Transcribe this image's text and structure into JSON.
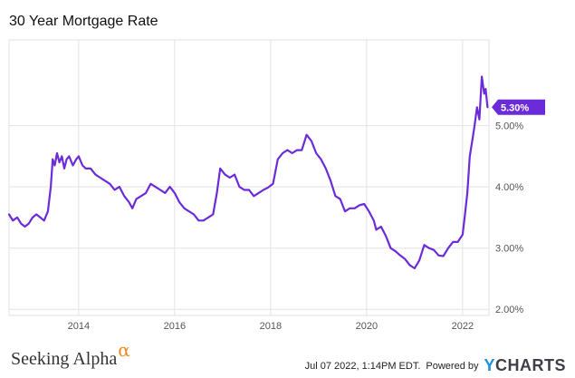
{
  "header": {
    "title": "30 Year Mortgage Rate"
  },
  "footer": {
    "brand_text": "Seeking Alpha",
    "brand_symbol": "α",
    "timestamp": "Jul 07 2022, 1:14PM EDT.",
    "powered_by": "Powered by",
    "logo_y": "Y",
    "logo_rest": "CHARTS"
  },
  "colors": {
    "line": "#6c2bd9",
    "grid": "#e3e3e3",
    "badge": "#6c2bd9"
  },
  "chart_data": {
    "type": "line",
    "title": "30 Year Mortgage Rate",
    "xlabel": "",
    "ylabel": "",
    "xlim": [
      2012.55,
      2022.55
    ],
    "ylim": [
      1.9,
      6.4
    ],
    "x_ticks": [
      2014,
      2016,
      2018,
      2020,
      2022
    ],
    "x_tick_labels": [
      "2014",
      "2016",
      "2018",
      "2020",
      "2022"
    ],
    "y_ticks": [
      2,
      3,
      4,
      5
    ],
    "y_tick_labels": [
      "2.00%",
      "3.00%",
      "4.00%",
      "5.00%"
    ],
    "grid": true,
    "last_value_label": "5.30%",
    "last_value": 5.3,
    "series": [
      {
        "name": "",
        "x": [
          2012.55,
          2012.63,
          2012.72,
          2012.8,
          2012.88,
          2012.96,
          2013.04,
          2013.12,
          2013.2,
          2013.28,
          2013.36,
          2013.42,
          2013.46,
          2013.5,
          2013.55,
          2013.6,
          2013.65,
          2013.7,
          2013.75,
          2013.8,
          2013.88,
          2013.95,
          2014.0,
          2014.08,
          2014.15,
          2014.25,
          2014.35,
          2014.45,
          2014.55,
          2014.65,
          2014.75,
          2014.85,
          2014.95,
          2015.05,
          2015.12,
          2015.2,
          2015.3,
          2015.4,
          2015.5,
          2015.6,
          2015.7,
          2015.8,
          2015.9,
          2016.0,
          2016.1,
          2016.2,
          2016.3,
          2016.4,
          2016.5,
          2016.6,
          2016.7,
          2016.8,
          2016.88,
          2016.95,
          2017.05,
          2017.15,
          2017.25,
          2017.35,
          2017.45,
          2017.55,
          2017.65,
          2017.75,
          2017.85,
          2017.95,
          2018.05,
          2018.15,
          2018.25,
          2018.35,
          2018.45,
          2018.55,
          2018.65,
          2018.75,
          2018.85,
          2018.95,
          2019.05,
          2019.15,
          2019.25,
          2019.35,
          2019.45,
          2019.55,
          2019.65,
          2019.75,
          2019.85,
          2019.95,
          2020.05,
          2020.15,
          2020.2,
          2020.3,
          2020.4,
          2020.5,
          2020.6,
          2020.7,
          2020.8,
          2020.9,
          2021.0,
          2021.1,
          2021.2,
          2021.3,
          2021.4,
          2021.5,
          2021.6,
          2021.7,
          2021.8,
          2021.9,
          2022.0,
          2022.05,
          2022.1,
          2022.15,
          2022.2,
          2022.25,
          2022.3,
          2022.35,
          2022.4,
          2022.45,
          2022.48,
          2022.52
        ],
        "values": [
          3.55,
          3.45,
          3.5,
          3.4,
          3.35,
          3.4,
          3.5,
          3.55,
          3.5,
          3.45,
          3.6,
          4.0,
          4.45,
          4.35,
          4.55,
          4.4,
          4.5,
          4.3,
          4.45,
          4.5,
          4.35,
          4.45,
          4.5,
          4.35,
          4.3,
          4.3,
          4.2,
          4.15,
          4.1,
          4.05,
          3.95,
          4.0,
          3.85,
          3.75,
          3.65,
          3.8,
          3.85,
          3.9,
          4.05,
          4.0,
          3.95,
          3.9,
          4.0,
          3.9,
          3.75,
          3.65,
          3.6,
          3.55,
          3.45,
          3.45,
          3.5,
          3.55,
          3.9,
          4.3,
          4.2,
          4.15,
          4.2,
          4.0,
          3.95,
          3.95,
          3.85,
          3.9,
          3.95,
          3.99,
          4.05,
          4.45,
          4.55,
          4.6,
          4.55,
          4.6,
          4.6,
          4.85,
          4.75,
          4.55,
          4.45,
          4.3,
          4.1,
          3.85,
          3.8,
          3.6,
          3.65,
          3.65,
          3.7,
          3.72,
          3.6,
          3.45,
          3.3,
          3.35,
          3.2,
          3.0,
          2.95,
          2.88,
          2.82,
          2.72,
          2.67,
          2.8,
          3.05,
          3.0,
          2.97,
          2.88,
          2.87,
          3.0,
          3.1,
          3.1,
          3.22,
          3.55,
          3.9,
          4.5,
          4.75,
          5.0,
          5.3,
          5.1,
          5.8,
          5.52,
          5.6,
          5.3
        ]
      }
    ]
  }
}
